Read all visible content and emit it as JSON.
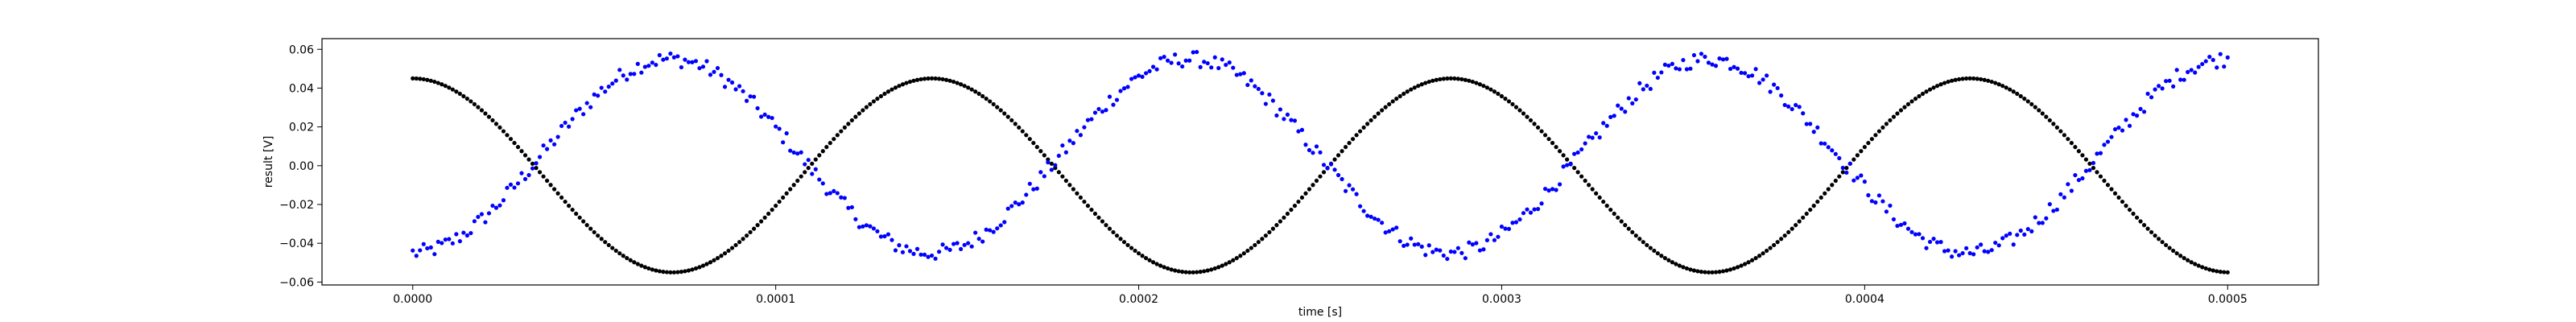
{
  "chart_data": {
    "type": "scatter",
    "title": "",
    "xlabel": "time [s]",
    "ylabel": "result [V]",
    "xlim": [
      -2.5e-05,
      0.000525
    ],
    "ylim": [
      -0.0615,
      0.0655
    ],
    "grid": false,
    "x_ticks": [
      0.0,
      0.0001,
      0.0002,
      0.0003,
      0.0004,
      0.0005
    ],
    "x_tick_labels": [
      "0.0000",
      "0.0001",
      "0.0002",
      "0.0003",
      "0.0004",
      "0.0005"
    ],
    "y_ticks": [
      -0.06,
      -0.04,
      -0.02,
      0.0,
      0.02,
      0.04,
      0.06
    ],
    "y_tick_labels": [
      "−0.06",
      "−0.04",
      "−0.02",
      "0.00",
      "0.02",
      "0.04",
      "0.06"
    ],
    "series": [
      {
        "color": "#000000",
        "x_start": 0.0,
        "x_end": 0.0005,
        "x_step": 1e-06,
        "mean": -0.005,
        "amplitude": 0.05,
        "period": 0.000143,
        "phase": 0.0,
        "form": "cos"
      },
      {
        "color": "#0000ff",
        "x_start": 0.0,
        "x_end": 0.0005,
        "x_step": 1e-06,
        "mean": 0.005,
        "amplitude": 0.05,
        "period": 0.000143,
        "phase": 7.1e-05,
        "form": "cos",
        "noise": 0.004
      }
    ]
  }
}
